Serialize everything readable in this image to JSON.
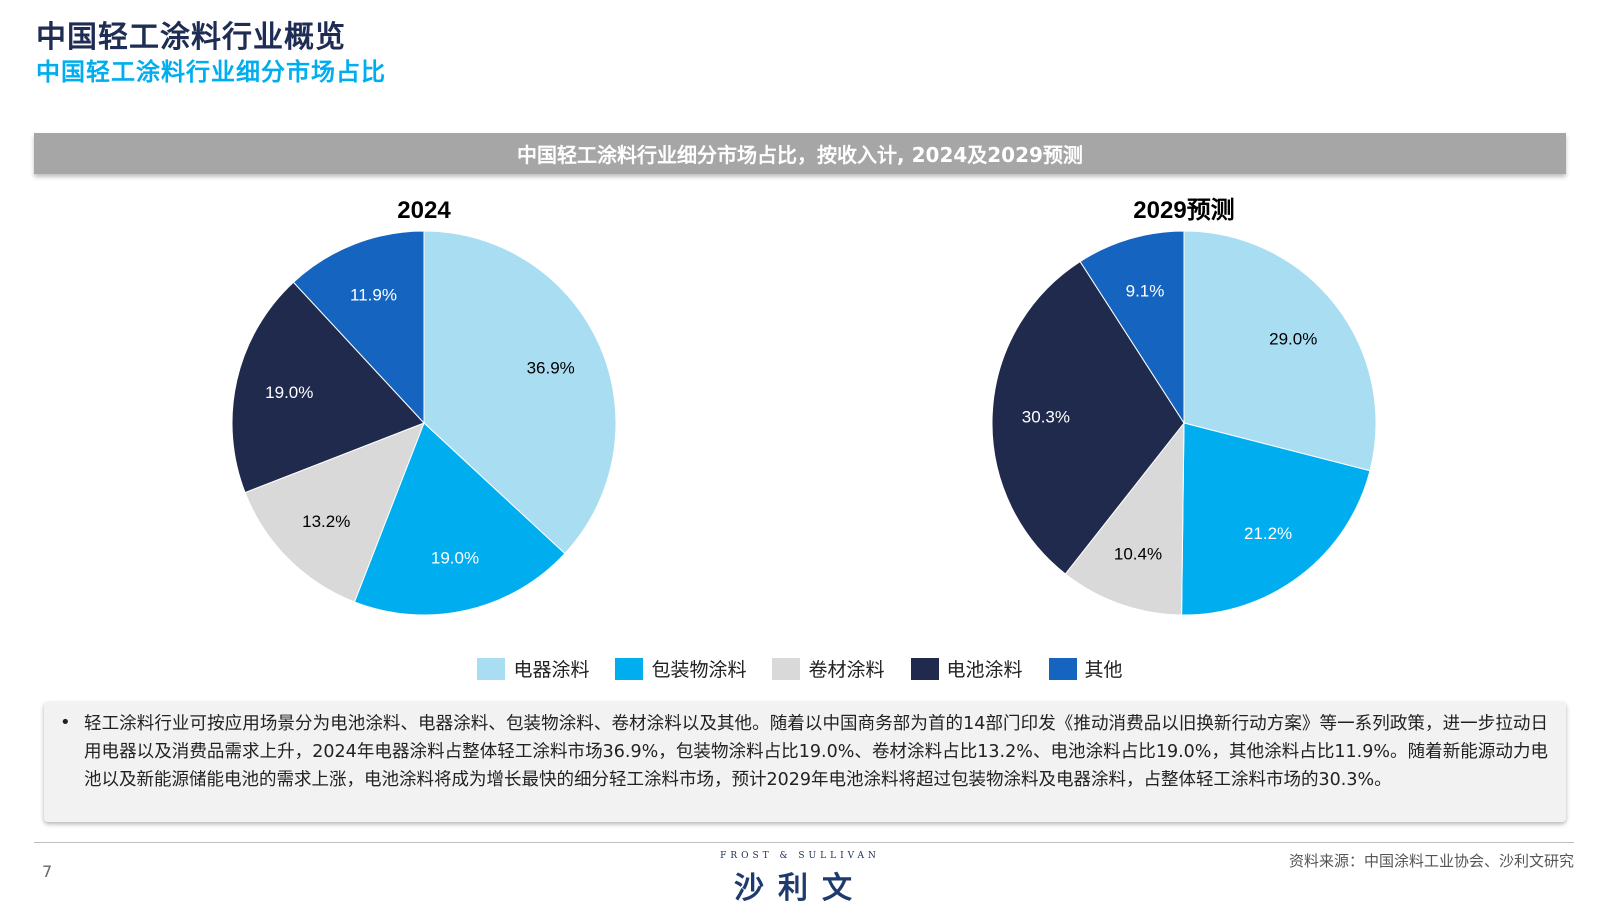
{
  "header": {
    "title": "中国轻工涂料行业概览",
    "subtitle": "中国轻工涂料行业细分市场占比"
  },
  "banner": {
    "text": "中国轻工涂料行业细分市场占比，按收入计, 2024及2029预测"
  },
  "chart_data": [
    {
      "type": "pie",
      "title": "2024",
      "categories": [
        "电器涂料",
        "包装物涂料",
        "卷材涂料",
        "电池涂料",
        "其他"
      ],
      "values": [
        36.9,
        19.0,
        13.2,
        19.0,
        11.9
      ],
      "labels": [
        "36.9%",
        "19.0%",
        "13.2%",
        "19.0%",
        "11.9%"
      ],
      "colors": [
        "#a9ddf2",
        "#00aeef",
        "#d9d9d9",
        "#1f2a4d",
        "#1565c0"
      ],
      "legend": "bottom"
    },
    {
      "type": "pie",
      "title": "2029预测",
      "categories": [
        "电器涂料",
        "包装物涂料",
        "卷材涂料",
        "电池涂料",
        "其他"
      ],
      "values": [
        29.0,
        21.2,
        10.4,
        30.3,
        9.1
      ],
      "labels": [
        "29.0%",
        "21.2%",
        "10.4%",
        "30.3%",
        "9.1%"
      ],
      "colors": [
        "#a9ddf2",
        "#00aeef",
        "#d9d9d9",
        "#1f2a4d",
        "#1565c0"
      ],
      "legend": "bottom"
    }
  ],
  "legend": [
    {
      "label": "电器涂料",
      "color": "#a9ddf2"
    },
    {
      "label": "包装物涂料",
      "color": "#00aeef"
    },
    {
      "label": "卷材涂料",
      "color": "#d9d9d9"
    },
    {
      "label": "电池涂料",
      "color": "#1f2a4d"
    },
    {
      "label": "其他",
      "color": "#1565c0"
    }
  ],
  "note": {
    "bullet": "•",
    "text": "轻工涂料行业可按应用场景分为电池涂料、电器涂料、包装物涂料、卷材涂料以及其他。随着以中国商务部为首的14部门印发《推动消费品以旧换新行动方案》等一系列政策，进一步拉动日用电器以及消费品需求上升，2024年电器涂料占整体轻工涂料市场36.9%，包装物涂料占比19.0%、卷材涂料占比13.2%、电池涂料占比19.0%，其他涂料占比11.9%。随着新能源动力电池以及新能源储能电池的需求上涨，电池涂料将成为增长最快的细分轻工涂料市场，预计2029年电池涂料将超过包装物涂料及电器涂料，占整体轻工涂料市场的30.3%。"
  },
  "footer": {
    "page": "7",
    "brand_en": "FROST & SULLIVAN",
    "brand_cn": "沙利文",
    "source": "资料来源：中国涂料工业协会、沙利文研究"
  }
}
